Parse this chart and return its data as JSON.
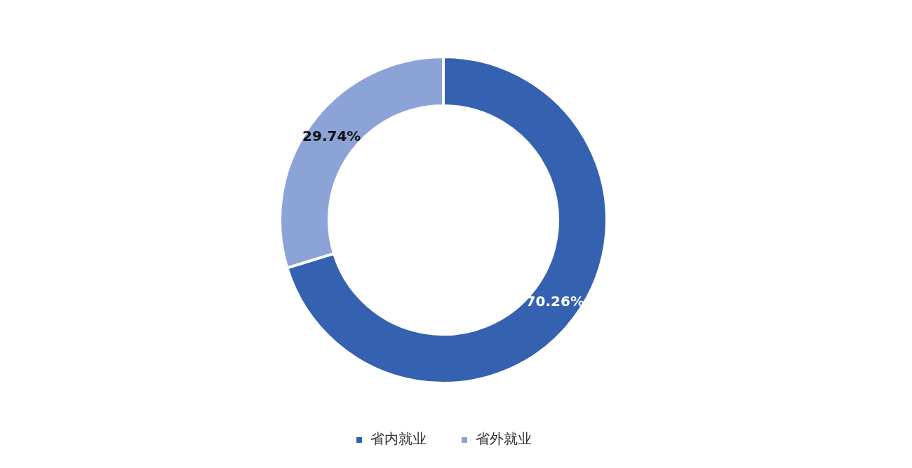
{
  "chart_data": {
    "type": "donut",
    "categories": [
      "省内就业",
      "省外就业"
    ],
    "values": [
      70.26,
      29.74
    ],
    "colors": [
      "#3461b0",
      "#8ba3d7"
    ],
    "value_labels": [
      "70.26%",
      "29.74%"
    ],
    "legend": "bottom"
  }
}
